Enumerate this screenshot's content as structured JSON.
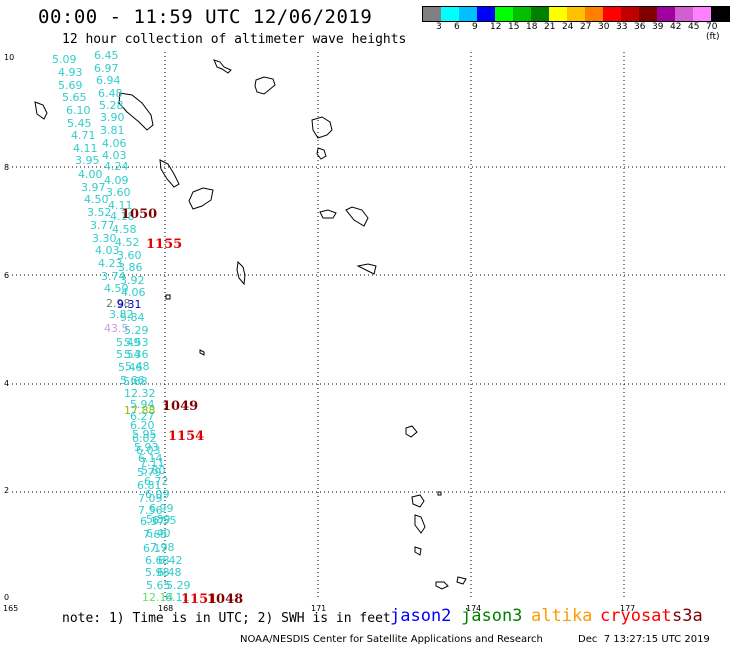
{
  "header": {
    "title": "00:00 - 11:59 UTC 12/06/2019",
    "subtitle": "12 hour collection of altimeter wave heights"
  },
  "color_scale": {
    "colors": [
      "#808080",
      "#00ffff",
      "#00c0ff",
      "#0000ff",
      "#00ff00",
      "#00c000",
      "#008000",
      "#ffff00",
      "#ffc000",
      "#ff8000",
      "#ff0000",
      "#c00000",
      "#800000",
      "#a000a0",
      "#d060d0",
      "#ff80ff",
      "#000000"
    ],
    "labels": [
      "3",
      "6",
      "9",
      "12",
      "15",
      "18",
      "21",
      "24",
      "27",
      "30",
      "33",
      "36",
      "39",
      "42",
      "45",
      "70 (ft)"
    ]
  },
  "axes": {
    "x_ticks": [
      "165",
      "168",
      "171",
      "174",
      "177"
    ],
    "y_ticks": [
      "0",
      "2",
      "4",
      "6",
      "8",
      "10"
    ]
  },
  "wave_heights": [
    {
      "v": "5.09",
      "c": "#33cccc"
    },
    {
      "v": "6.45",
      "c": "#33cccc"
    },
    {
      "v": "4.93",
      "c": "#33cccc"
    },
    {
      "v": "6.97",
      "c": "#33cccc"
    },
    {
      "v": "5.69",
      "c": "#33cccc"
    },
    {
      "v": "6.94",
      "c": "#33cccc"
    },
    {
      "v": "5.65",
      "c": "#33cccc"
    },
    {
      "v": "6.48",
      "c": "#33cccc"
    },
    {
      "v": "6.10",
      "c": "#33cccc"
    },
    {
      "v": "5.28",
      "c": "#33cccc"
    },
    {
      "v": "5.45",
      "c": "#33cccc"
    },
    {
      "v": "3.90",
      "c": "#33cccc"
    },
    {
      "v": "4.71",
      "c": "#33cccc"
    },
    {
      "v": "3.81",
      "c": "#33cccc"
    },
    {
      "v": "4.11",
      "c": "#33cccc"
    },
    {
      "v": "4.06",
      "c": "#33cccc"
    },
    {
      "v": "3.95",
      "c": "#33cccc"
    },
    {
      "v": "4.03",
      "c": "#33cccc"
    },
    {
      "v": "4.24",
      "c": "#33cccc"
    },
    {
      "v": "4.00",
      "c": "#33cccc"
    },
    {
      "v": "4.09",
      "c": "#33cccc"
    },
    {
      "v": "3.97",
      "c": "#33cccc"
    },
    {
      "v": "3.60",
      "c": "#33cccc"
    },
    {
      "v": "4.50",
      "c": "#33cccc"
    },
    {
      "v": "4.11",
      "c": "#33cccc"
    },
    {
      "v": "3.52",
      "c": "#33cccc"
    },
    {
      "v": "4.18",
      "c": "#33cccc"
    },
    {
      "v": "3.77",
      "c": "#33cccc"
    },
    {
      "v": "4.58",
      "c": "#33cccc"
    },
    {
      "v": "3.30",
      "c": "#33cccc"
    },
    {
      "v": "4.52",
      "c": "#33cccc"
    },
    {
      "v": "4.03",
      "c": "#33cccc"
    },
    {
      "v": "3.60",
      "c": "#33cccc"
    },
    {
      "v": "4.23",
      "c": "#33cccc"
    },
    {
      "v": "3.86",
      "c": "#33cccc"
    },
    {
      "v": "3.74",
      "c": "#33cccc"
    },
    {
      "v": "3.92",
      "c": "#33cccc"
    },
    {
      "v": "4.50",
      "c": "#33cccc"
    },
    {
      "v": "4.06",
      "c": "#33cccc"
    },
    {
      "v": "2.98",
      "c": "#7a7a7a"
    },
    {
      "v": "9.31",
      "c": "#0000cc"
    },
    {
      "v": "3.82",
      "c": "#33cccc"
    },
    {
      "v": "5.84",
      "c": "#33cccc"
    },
    {
      "v": "43.5",
      "c": "#c9a0e6"
    },
    {
      "v": "5.29",
      "c": "#33cccc"
    },
    {
      "v": "5.49",
      "c": "#33cccc"
    },
    {
      "v": "5.53",
      "c": "#33cccc"
    },
    {
      "v": "5.54",
      "c": "#33cccc"
    },
    {
      "v": "5.36",
      "c": "#33cccc"
    },
    {
      "v": "5.46",
      "c": "#33cccc"
    },
    {
      "v": "5.48",
      "c": "#33cccc"
    },
    {
      "v": "5.66",
      "c": "#33cccc"
    },
    {
      "v": "5.68",
      "c": "#33cccc"
    },
    {
      "v": "12.32",
      "c": "#33cccc"
    },
    {
      "v": "5.94",
      "c": "#33cccc"
    },
    {
      "v": "17.88",
      "c": "#88bb00"
    },
    {
      "v": "6.27",
      "c": "#33cccc"
    },
    {
      "v": "6.20",
      "c": "#33cccc"
    },
    {
      "v": "5.95",
      "c": "#33cccc"
    },
    {
      "v": "6.02",
      "c": "#33cccc"
    },
    {
      "v": "5.93",
      "c": "#33cccc"
    },
    {
      "v": "6.03",
      "c": "#33cccc"
    },
    {
      "v": "6.14",
      "c": "#33cccc"
    },
    {
      "v": "7.11",
      "c": "#33cccc"
    },
    {
      "v": "5.80",
      "c": "#33cccc"
    },
    {
      "v": "5.79",
      "c": "#33cccc"
    },
    {
      "v": "6.72",
      "c": "#33cccc"
    },
    {
      "v": "6.81",
      "c": "#33cccc"
    },
    {
      "v": "6.09",
      "c": "#33cccc"
    },
    {
      "v": "7.09",
      "c": "#33cccc"
    },
    {
      "v": "6.99",
      "c": "#33cccc"
    },
    {
      "v": "7.56",
      "c": "#33cccc"
    },
    {
      "v": "5.89",
      "c": "#33cccc"
    },
    {
      "v": "6.37",
      "c": "#33cccc"
    },
    {
      "v": "6.55",
      "c": "#33cccc"
    },
    {
      "v": "7.65",
      "c": "#33cccc"
    },
    {
      "v": "6.40",
      "c": "#33cccc"
    },
    {
      "v": "6.17",
      "c": "#33cccc"
    },
    {
      "v": "7.98",
      "c": "#33cccc"
    },
    {
      "v": "6.68",
      "c": "#33cccc"
    },
    {
      "v": "6.42",
      "c": "#33cccc"
    },
    {
      "v": "5.98",
      "c": "#33cccc"
    },
    {
      "v": "6.48",
      "c": "#33cccc"
    },
    {
      "v": "5.65",
      "c": "#33cccc"
    },
    {
      "v": "5.29",
      "c": "#33cccc"
    },
    {
      "v": "12.14",
      "c": "#66dd66"
    },
    {
      "v": "6.11",
      "c": "#33cccc"
    }
  ],
  "pass_times": [
    {
      "t": "1050",
      "c": "#800000"
    },
    {
      "t": "1155",
      "c": "#e00000"
    },
    {
      "t": "1049",
      "c": "#800000"
    },
    {
      "t": "1154",
      "c": "#e00000"
    },
    {
      "t": "1151",
      "c": "#e00000"
    },
    {
      "t": "1048",
      "c": "#800000"
    }
  ],
  "footer": {
    "note": "note: 1) Time is in UTC; 2) SWH is in feet",
    "satellites": [
      {
        "name": "jason2",
        "color": "#0000ff"
      },
      {
        "name": "jason3",
        "color": "#008000"
      },
      {
        "name": "altika",
        "color": "#ff9900"
      },
      {
        "name": "cryosat",
        "color": "#ff0000"
      },
      {
        "name": "s3a",
        "color": "#800000"
      }
    ],
    "credit": "NOAA/NESDIS Center for Satellite Applications and Research",
    "timestamp": "Dec  7 13:27:15 UTC 2019"
  }
}
